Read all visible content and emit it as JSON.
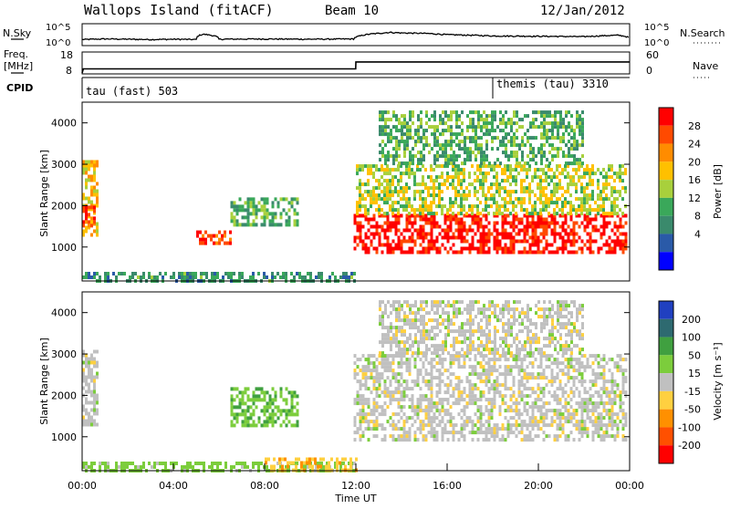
{
  "header": {
    "title": "Wallops Island (fitACF)",
    "beam": "Beam 10",
    "date": "12/Jan/2012"
  },
  "aux_panels": {
    "nsky_label": "N.Sky",
    "nsearch_label": "N.Search",
    "freq_label_1": "Freq.",
    "freq_label_2": "[MHz]",
    "nave_label": "Nave",
    "cpid_label": "CPID",
    "nsky_ticks": [
      "10^5",
      "10^0"
    ],
    "nsearch_ticks": [
      "10^5",
      "10^0"
    ],
    "freq_ticks": [
      "18",
      "8"
    ],
    "nave_ticks": [
      "60",
      "0"
    ],
    "cpid_segments": [
      {
        "label": "tau (fast) 503",
        "start_hour": 0
      },
      {
        "label": "themis (tau) 3310",
        "start_hour": 18.0
      }
    ]
  },
  "x_axis": {
    "label": "Time UT",
    "ticks": [
      "00:00",
      "04:00",
      "08:00",
      "12:00",
      "16:00",
      "20:00",
      "00:00"
    ]
  },
  "colorbars": {
    "power": {
      "label": "Power [dB]",
      "ticks": [
        "28",
        "24",
        "20",
        "16",
        "12",
        "8",
        "4"
      ],
      "colors": [
        "#ff0000",
        "#ff4a00",
        "#ff8c00",
        "#ffc000",
        "#a8d03c",
        "#3aa85a",
        "#3a8a6c",
        "#2a5aa8",
        "#0000ff"
      ]
    },
    "velocity": {
      "label": "Velocity [m s⁻¹]",
      "ticks": [
        "200",
        "100",
        "50",
        "15",
        "-15",
        "-50",
        "-100",
        "-200"
      ],
      "colors": [
        "#2040c0",
        "#2e6a70",
        "#40a040",
        "#7ccd3c",
        "#c0c0c0",
        "#ffd040",
        "#ff9000",
        "#ff5000",
        "#ff0000"
      ]
    }
  },
  "chart_data": [
    {
      "type": "line",
      "title": "N.Sky",
      "x_range_hours": [
        0,
        24
      ],
      "scale": "log",
      "ylim": [
        1,
        100000
      ],
      "x": [
        0,
        1,
        2,
        3,
        4,
        5,
        5.3,
        6,
        8,
        10,
        11.9,
        12.2,
        13,
        13.5,
        14,
        15,
        16,
        18,
        20,
        22,
        23.5,
        24
      ],
      "y": [
        20,
        30,
        25,
        20,
        25,
        20,
        800,
        25,
        30,
        25,
        30,
        250,
        1500,
        3000,
        2000,
        1500,
        600,
        250,
        200,
        150,
        400,
        50
      ]
    },
    {
      "type": "line",
      "title": "Freq. [MHz]",
      "x_range_hours": [
        0,
        24
      ],
      "ylim": [
        8,
        18
      ],
      "x": [
        0,
        0.05,
        11.99,
        12.0,
        24
      ],
      "y": [
        8,
        10.5,
        10.5,
        14.7,
        14.7
      ]
    },
    {
      "type": "heatmap",
      "title": "Power [dB]",
      "xlabel": "Time UT",
      "ylabel": "Slant Range [km]",
      "x_range_hours": [
        0,
        24
      ],
      "ylim": [
        180,
        4500
      ],
      "yticks": [
        1000,
        2000,
        3000,
        4000
      ],
      "regions": [
        {
          "t": [
            0,
            0.7
          ],
          "r": [
            1300,
            3100
          ],
          "level": 18
        },
        {
          "t": [
            0,
            0.5
          ],
          "r": [
            1500,
            2000
          ],
          "level": 26
        },
        {
          "t": [
            0,
            12
          ],
          "r": [
            200,
            400
          ],
          "level": 10
        },
        {
          "t": [
            5,
            6.5
          ],
          "r": [
            1100,
            1400
          ],
          "level": 26
        },
        {
          "t": [
            6.5,
            9.5
          ],
          "r": [
            1500,
            2200
          ],
          "level": 12
        },
        {
          "t": [
            11.9,
            23.8
          ],
          "r": [
            900,
            1800
          ],
          "level": 28
        },
        {
          "t": [
            12,
            23.8
          ],
          "r": [
            1800,
            3000
          ],
          "level": 16
        },
        {
          "t": [
            13,
            22
          ],
          "r": [
            3000,
            4300
          ],
          "level": 12
        }
      ]
    },
    {
      "type": "heatmap",
      "title": "Velocity [m s⁻¹]",
      "xlabel": "Time UT",
      "ylabel": "Slant Range [km]",
      "x_range_hours": [
        0,
        24
      ],
      "ylim": [
        180,
        4500
      ],
      "yticks": [
        1000,
        2000,
        3000,
        4000
      ],
      "regions": [
        {
          "t": [
            0,
            0.7
          ],
          "r": [
            1300,
            3100
          ],
          "velocity": 0
        },
        {
          "t": [
            0,
            12
          ],
          "r": [
            200,
            400
          ],
          "velocity": 30
        },
        {
          "t": [
            6.5,
            9.5
          ],
          "r": [
            1300,
            2200
          ],
          "velocity": 40
        },
        {
          "t": [
            8,
            12
          ],
          "r": [
            200,
            500
          ],
          "velocity": -40
        },
        {
          "t": [
            11.9,
            23.8
          ],
          "r": [
            900,
            3000
          ],
          "velocity": 0
        },
        {
          "t": [
            13,
            22
          ],
          "r": [
            3000,
            4300
          ],
          "velocity": 0
        }
      ]
    }
  ]
}
